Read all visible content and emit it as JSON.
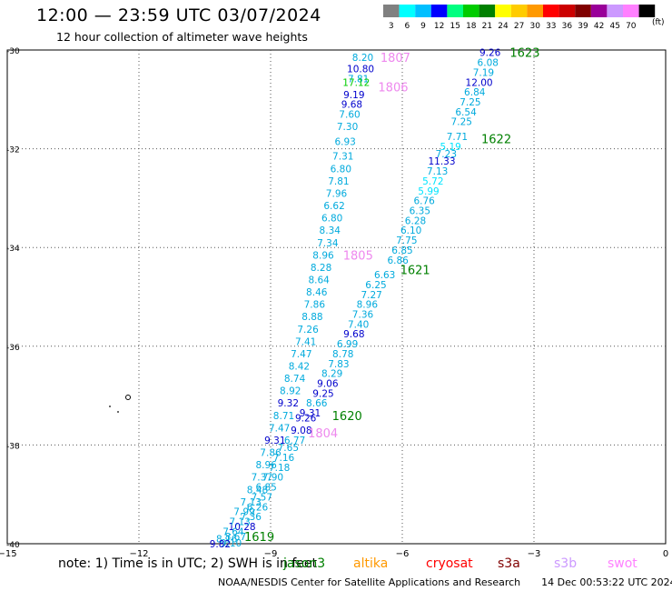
{
  "header": {
    "title": "12:00 — 23:59 UTC 03/07/2024",
    "subtitle": "12 hour collection of altimeter wave heights"
  },
  "legend": {
    "units": "(ft)",
    "bins": [
      {
        "label": "3",
        "color": "#808080"
      },
      {
        "label": "6",
        "color": "#00ffff"
      },
      {
        "label": "9",
        "color": "#00bfff"
      },
      {
        "label": "12",
        "color": "#0000ff"
      },
      {
        "label": "15",
        "color": "#00ff80"
      },
      {
        "label": "18",
        "color": "#00cc00"
      },
      {
        "label": "21",
        "color": "#008000"
      },
      {
        "label": "24",
        "color": "#ffff00"
      },
      {
        "label": "27",
        "color": "#ffcc00"
      },
      {
        "label": "30",
        "color": "#ff9900"
      },
      {
        "label": "33",
        "color": "#ff0000"
      },
      {
        "label": "36",
        "color": "#cc0000"
      },
      {
        "label": "39",
        "color": "#800000"
      },
      {
        "label": "42",
        "color": "#990099"
      },
      {
        "label": "45",
        "color": "#cc99ff"
      },
      {
        "label": "70",
        "color": "#ff80ff"
      },
      {
        "label": "",
        "color": "#000000"
      }
    ]
  },
  "axes": {
    "x_ticks": [
      -15,
      -12,
      -9,
      -6,
      -3,
      0
    ],
    "y_ticks": [
      -30,
      -32,
      -34,
      -36,
      -38,
      -40
    ],
    "x_labels": [
      "−15",
      "−12",
      "−9",
      "−6",
      "−3",
      "0"
    ],
    "y_labels": [
      "-30",
      "-32",
      "-34",
      "-36",
      "-38",
      "-40"
    ],
    "lon_range": [
      -15,
      0
    ],
    "lat_range": [
      -40,
      -30
    ]
  },
  "chart_data": {
    "type": "scatter",
    "tracks": [
      {
        "name": "1623 / 1622 / 1621 / 1620 / 1619",
        "points": [
          {
            "lon": -4.0,
            "lat": -30.05,
            "swh": "9.26",
            "color": "#0000cc"
          },
          {
            "lon": -4.05,
            "lat": -30.25,
            "swh": "6.08",
            "color": "#00aadd"
          },
          {
            "lon": -4.15,
            "lat": -30.45,
            "swh": "7.19",
            "color": "#00aadd"
          },
          {
            "lon": -4.25,
            "lat": -30.65,
            "swh": "12.00",
            "color": "#0000cc"
          },
          {
            "lon": -4.35,
            "lat": -30.85,
            "swh": "6.84",
            "color": "#00aadd"
          },
          {
            "lon": -4.45,
            "lat": -31.05,
            "swh": "7.25",
            "color": "#00aadd"
          },
          {
            "lon": -4.55,
            "lat": -31.25,
            "swh": "6.54",
            "color": "#00aadd"
          },
          {
            "lon": -4.65,
            "lat": -31.45,
            "swh": "7.25",
            "color": "#00aadd"
          },
          {
            "lon": -4.75,
            "lat": -31.75,
            "swh": "7.71",
            "color": "#00aadd"
          },
          {
            "lon": -4.9,
            "lat": -31.95,
            "swh": "5.19",
            "color": "#00e5ff"
          },
          {
            "lon": -5.0,
            "lat": -32.1,
            "swh": "7.23",
            "color": "#00aadd"
          },
          {
            "lon": -5.1,
            "lat": -32.25,
            "swh": "11.33",
            "color": "#0000cc"
          },
          {
            "lon": -5.2,
            "lat": -32.45,
            "swh": "7.13",
            "color": "#00aadd"
          },
          {
            "lon": -5.3,
            "lat": -32.65,
            "swh": "5.72",
            "color": "#00e5ff"
          },
          {
            "lon": -5.4,
            "lat": -32.85,
            "swh": "5.99",
            "color": "#00e5ff"
          },
          {
            "lon": -5.5,
            "lat": -33.05,
            "swh": "6.76",
            "color": "#00aadd"
          },
          {
            "lon": -5.6,
            "lat": -33.25,
            "swh": "6.35",
            "color": "#00aadd"
          },
          {
            "lon": -5.7,
            "lat": -33.45,
            "swh": "6.28",
            "color": "#00aadd"
          },
          {
            "lon": -5.8,
            "lat": -33.65,
            "swh": "6.10",
            "color": "#00aadd"
          },
          {
            "lon": -5.9,
            "lat": -33.85,
            "swh": "7.75",
            "color": "#00aadd"
          },
          {
            "lon": -6.0,
            "lat": -34.05,
            "swh": "6.85",
            "color": "#00aadd"
          },
          {
            "lon": -6.1,
            "lat": -34.25,
            "swh": "6.86",
            "color": "#00aadd"
          },
          {
            "lon": -6.4,
            "lat": -34.55,
            "swh": "6.63",
            "color": "#00aadd"
          },
          {
            "lon": -6.6,
            "lat": -34.75,
            "swh": "6.25",
            "color": "#00aadd"
          },
          {
            "lon": -6.7,
            "lat": -34.95,
            "swh": "7.27",
            "color": "#00aadd"
          },
          {
            "lon": -6.8,
            "lat": -35.15,
            "swh": "8.96",
            "color": "#00aadd"
          },
          {
            "lon": -6.9,
            "lat": -35.35,
            "swh": "7.36",
            "color": "#00aadd"
          },
          {
            "lon": -7.0,
            "lat": -35.55,
            "swh": "7.40",
            "color": "#00aadd"
          },
          {
            "lon": -7.1,
            "lat": -35.75,
            "swh": "9.68",
            "color": "#0000cc"
          },
          {
            "lon": -7.25,
            "lat": -35.95,
            "swh": "6.99",
            "color": "#00aadd"
          },
          {
            "lon": -7.35,
            "lat": -36.15,
            "swh": "8.78",
            "color": "#00aadd"
          },
          {
            "lon": -7.45,
            "lat": -36.35,
            "swh": "7.83",
            "color": "#00aadd"
          },
          {
            "lon": -7.6,
            "lat": -36.55,
            "swh": "8.29",
            "color": "#00aadd"
          },
          {
            "lon": -7.7,
            "lat": -36.75,
            "swh": "9.06",
            "color": "#0000cc"
          },
          {
            "lon": -7.8,
            "lat": -36.95,
            "swh": "9.25",
            "color": "#0000cc"
          },
          {
            "lon": -7.95,
            "lat": -37.15,
            "swh": "8.66",
            "color": "#00aadd"
          },
          {
            "lon": -8.1,
            "lat": -37.35,
            "swh": "9.31",
            "color": "#0000cc"
          },
          {
            "lon": -8.2,
            "lat": -37.45,
            "swh": "9.26",
            "color": "#0000cc"
          },
          {
            "lon": -8.3,
            "lat": -37.7,
            "swh": "9.08",
            "color": "#0000cc"
          },
          {
            "lon": -8.45,
            "lat": -37.9,
            "swh": "6.77",
            "color": "#00aadd"
          },
          {
            "lon": -8.6,
            "lat": -38.05,
            "swh": "7.65",
            "color": "#00aadd"
          },
          {
            "lon": -8.7,
            "lat": -38.25,
            "swh": "7.16",
            "color": "#00aadd"
          },
          {
            "lon": -8.8,
            "lat": -38.45,
            "swh": "7.18",
            "color": "#00aadd"
          },
          {
            "lon": -8.95,
            "lat": -38.65,
            "swh": "7.90",
            "color": "#00aadd"
          },
          {
            "lon": -9.1,
            "lat": -38.85,
            "swh": "6.85",
            "color": "#00aadd"
          },
          {
            "lon": -9.2,
            "lat": -39.05,
            "swh": "7.57",
            "color": "#00aadd"
          },
          {
            "lon": -9.3,
            "lat": -39.25,
            "swh": "6.26",
            "color": "#00aadd"
          },
          {
            "lon": -9.45,
            "lat": -39.45,
            "swh": "7.36",
            "color": "#00aadd"
          },
          {
            "lon": -9.65,
            "lat": -39.65,
            "swh": "10.28",
            "color": "#0000cc"
          },
          {
            "lon": -9.8,
            "lat": -39.85,
            "swh": "8.67",
            "color": "#00aadd"
          },
          {
            "lon": -9.9,
            "lat": -39.98,
            "swh": "9.10",
            "color": "#00aadd"
          }
        ]
      },
      {
        "name": "1807 / 1806 / 1805 / 1804",
        "points": [
          {
            "lon": -6.9,
            "lat": -30.15,
            "swh": "8.20",
            "color": "#00aadd"
          },
          {
            "lon": -6.95,
            "lat": -30.38,
            "swh": "10.80",
            "color": "#0000cc"
          },
          {
            "lon": -7.0,
            "lat": -30.58,
            "swh": "7.81",
            "color": "#00aadd"
          },
          {
            "lon": -7.05,
            "lat": -30.65,
            "swh": "17.12",
            "color": "#00cc00"
          },
          {
            "lon": -7.1,
            "lat": -30.9,
            "swh": "9.19",
            "color": "#0000cc"
          },
          {
            "lon": -7.15,
            "lat": -31.1,
            "swh": "9.68",
            "color": "#0000cc"
          },
          {
            "lon": -7.2,
            "lat": -31.3,
            "swh": "7.60",
            "color": "#00aadd"
          },
          {
            "lon": -7.25,
            "lat": -31.55,
            "swh": "7.30",
            "color": "#00aadd"
          },
          {
            "lon": -7.3,
            "lat": -31.85,
            "swh": "6.93",
            "color": "#00aadd"
          },
          {
            "lon": -7.35,
            "lat": -32.15,
            "swh": "7.31",
            "color": "#00aadd"
          },
          {
            "lon": -7.4,
            "lat": -32.4,
            "swh": "6.80",
            "color": "#00aadd"
          },
          {
            "lon": -7.45,
            "lat": -32.65,
            "swh": "7.81",
            "color": "#00aadd"
          },
          {
            "lon": -7.5,
            "lat": -32.9,
            "swh": "7.96",
            "color": "#00aadd"
          },
          {
            "lon": -7.55,
            "lat": -33.15,
            "swh": "6.62",
            "color": "#00aadd"
          },
          {
            "lon": -7.6,
            "lat": -33.4,
            "swh": "6.80",
            "color": "#00aadd"
          },
          {
            "lon": -7.65,
            "lat": -33.65,
            "swh": "8.34",
            "color": "#00aadd"
          },
          {
            "lon": -7.7,
            "lat": -33.9,
            "swh": "7.34",
            "color": "#00aadd"
          },
          {
            "lon": -7.8,
            "lat": -34.15,
            "swh": "8.96",
            "color": "#00aadd"
          },
          {
            "lon": -7.85,
            "lat": -34.4,
            "swh": "8.28",
            "color": "#00aadd"
          },
          {
            "lon": -7.9,
            "lat": -34.65,
            "swh": "8.64",
            "color": "#00aadd"
          },
          {
            "lon": -7.95,
            "lat": -34.9,
            "swh": "8.46",
            "color": "#00aadd"
          },
          {
            "lon": -8.0,
            "lat": -35.15,
            "swh": "7.86",
            "color": "#00aadd"
          },
          {
            "lon": -8.05,
            "lat": -35.4,
            "swh": "8.88",
            "color": "#00aadd"
          },
          {
            "lon": -8.15,
            "lat": -35.65,
            "swh": "7.26",
            "color": "#00aadd"
          },
          {
            "lon": -8.2,
            "lat": -35.9,
            "swh": "7.41",
            "color": "#00aadd"
          },
          {
            "lon": -8.3,
            "lat": -36.15,
            "swh": "7.47",
            "color": "#00aadd"
          },
          {
            "lon": -8.35,
            "lat": -36.4,
            "swh": "8.42",
            "color": "#00aadd"
          },
          {
            "lon": -8.45,
            "lat": -36.65,
            "swh": "8.74",
            "color": "#00aadd"
          },
          {
            "lon": -8.55,
            "lat": -36.9,
            "swh": "8.92",
            "color": "#00aadd"
          },
          {
            "lon": -8.6,
            "lat": -37.15,
            "swh": "9.32",
            "color": "#0000cc"
          },
          {
            "lon": -8.7,
            "lat": -37.4,
            "swh": "8.71",
            "color": "#00aadd"
          },
          {
            "lon": -8.8,
            "lat": -37.65,
            "swh": "7.47",
            "color": "#00aadd"
          },
          {
            "lon": -8.9,
            "lat": -37.9,
            "swh": "9.31",
            "color": "#0000cc"
          },
          {
            "lon": -9.0,
            "lat": -38.15,
            "swh": "7.86",
            "color": "#00aadd"
          },
          {
            "lon": -9.1,
            "lat": -38.4,
            "swh": "8.96",
            "color": "#00aadd"
          },
          {
            "lon": -9.2,
            "lat": -38.65,
            "swh": "7.37",
            "color": "#00aadd"
          },
          {
            "lon": -9.3,
            "lat": -38.9,
            "swh": "8.48",
            "color": "#00aadd"
          },
          {
            "lon": -9.45,
            "lat": -39.15,
            "swh": "7.13",
            "color": "#00aadd"
          },
          {
            "lon": -9.6,
            "lat": -39.35,
            "swh": "7.99",
            "color": "#00aadd"
          },
          {
            "lon": -9.7,
            "lat": -39.55,
            "swh": "7.13",
            "color": "#00aadd"
          },
          {
            "lon": -9.85,
            "lat": -39.75,
            "swh": "7.64",
            "color": "#00aadd"
          },
          {
            "lon": -10.0,
            "lat": -39.9,
            "swh": "8.16",
            "color": "#00aadd"
          },
          {
            "lon": -10.15,
            "lat": -40.0,
            "swh": "9.82",
            "color": "#0000cc"
          }
        ]
      }
    ],
    "pass_labels": [
      {
        "text": "1623",
        "lon": -3.55,
        "lat": -30.05,
        "color": "#008000"
      },
      {
        "text": "1622",
        "lon": -4.2,
        "lat": -31.8,
        "color": "#008000"
      },
      {
        "text": "1621",
        "lon": -6.05,
        "lat": -34.45,
        "color": "#008000"
      },
      {
        "text": "1620",
        "lon": -7.6,
        "lat": -37.4,
        "color": "#008000"
      },
      {
        "text": "1619",
        "lon": -9.6,
        "lat": -39.85,
        "color": "#008000"
      },
      {
        "text": "1807",
        "lon": -6.5,
        "lat": -30.15,
        "color": "#ee88ee"
      },
      {
        "text": "1806",
        "lon": -6.55,
        "lat": -30.75,
        "color": "#ee88ee"
      },
      {
        "text": "1805",
        "lon": -7.35,
        "lat": -34.15,
        "color": "#ee88ee"
      },
      {
        "text": "1804",
        "lon": -8.15,
        "lat": -37.75,
        "color": "#ee88ee"
      }
    ]
  },
  "footer": {
    "note": "note:  1) Time is in UTC; 2) SWH is in feet",
    "satellites": [
      {
        "name": "jason3",
        "color": "#008000"
      },
      {
        "name": "altika",
        "color": "#ff9900"
      },
      {
        "name": "cryosat",
        "color": "#ff0000"
      },
      {
        "name": "s3a",
        "color": "#800000"
      },
      {
        "name": "s3b",
        "color": "#cc99ff"
      },
      {
        "name": "swot",
        "color": "#ff80ff"
      }
    ],
    "credit": "NOAA/NESDIS Center for Satellite Applications and Research",
    "timestamp": "14 Dec 00:53:22 UTC 2024"
  }
}
